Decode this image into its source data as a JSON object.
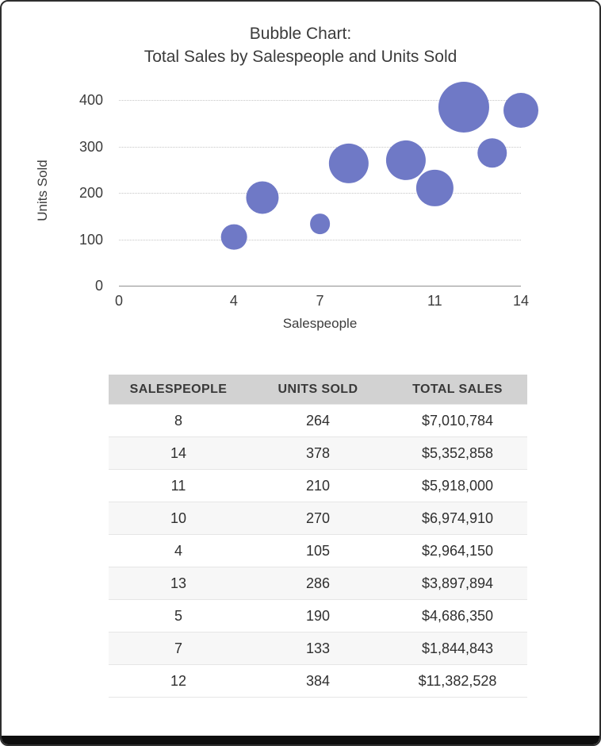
{
  "chart": {
    "title_line1": "Bubble Chart:",
    "title_line2": "Total Sales by Salespeople and Units Sold"
  },
  "chart_data": {
    "type": "scatter",
    "subtype": "bubble",
    "title": "Bubble Chart: Total Sales by Salespeople and Units Sold",
    "xlabel": "Salespeople",
    "ylabel": "Units Sold",
    "xlim": [
      0,
      14
    ],
    "ylim": [
      0,
      400
    ],
    "x_ticks": [
      0,
      4,
      7,
      11,
      14
    ],
    "y_ticks": [
      0,
      100,
      200,
      300,
      400
    ],
    "grid": "horizontal-dotted",
    "legend": "none",
    "series": [
      {
        "name": "Total Sales",
        "points": [
          {
            "salespeople": 8,
            "units_sold": 264,
            "total_sales": 7010784
          },
          {
            "salespeople": 14,
            "units_sold": 378,
            "total_sales": 5352858
          },
          {
            "salespeople": 11,
            "units_sold": 210,
            "total_sales": 5918000
          },
          {
            "salespeople": 10,
            "units_sold": 270,
            "total_sales": 6974910
          },
          {
            "salespeople": 4,
            "units_sold": 105,
            "total_sales": 2964150
          },
          {
            "salespeople": 13,
            "units_sold": 286,
            "total_sales": 3897894
          },
          {
            "salespeople": 5,
            "units_sold": 190,
            "total_sales": 4686350
          },
          {
            "salespeople": 7,
            "units_sold": 133,
            "total_sales": 1844843
          },
          {
            "salespeople": 12,
            "units_sold": 384,
            "total_sales": 11382528
          }
        ]
      }
    ]
  },
  "table": {
    "headers": [
      "SALESPEOPLE",
      "UNITS SOLD",
      "TOTAL SALES"
    ],
    "rows": [
      [
        "8",
        "264",
        "$7,010,784"
      ],
      [
        "14",
        "378",
        "$5,352,858"
      ],
      [
        "11",
        "210",
        "$5,918,000"
      ],
      [
        "10",
        "270",
        "$6,974,910"
      ],
      [
        "4",
        "105",
        "$2,964,150"
      ],
      [
        "13",
        "286",
        "$3,897,894"
      ],
      [
        "5",
        "190",
        "$4,686,350"
      ],
      [
        "7",
        "133",
        "$1,844,843"
      ],
      [
        "12",
        "384",
        "$11,382,528"
      ]
    ]
  },
  "colors": {
    "bubble": "#6f79c6",
    "header_bg": "#d2d2d2",
    "axis_line": "#8f8f8f",
    "gridline": "#c6c6c6",
    "text": "#3b3b3b"
  }
}
